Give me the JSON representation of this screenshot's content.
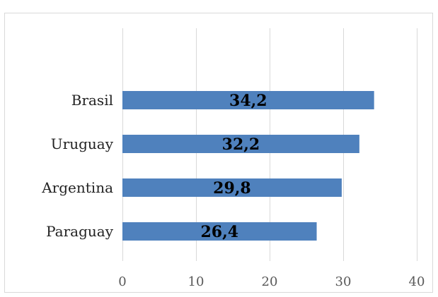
{
  "chart_data": {
    "type": "bar",
    "orientation": "horizontal",
    "categories": [
      "Brasil",
      "Uruguay",
      "Argentina",
      "Paraguay"
    ],
    "values": [
      34.2,
      32.2,
      29.8,
      26.4
    ],
    "data_labels": [
      "34,2",
      "32,2",
      "29,8",
      "26,4"
    ],
    "xlim": [
      0,
      40
    ],
    "x_ticks": [
      0,
      10,
      20,
      30,
      40
    ],
    "x_tick_labels": [
      "0",
      "10",
      "20",
      "30",
      "40"
    ],
    "grid": true,
    "legend": "none",
    "bar_color": "#4f81bd"
  }
}
